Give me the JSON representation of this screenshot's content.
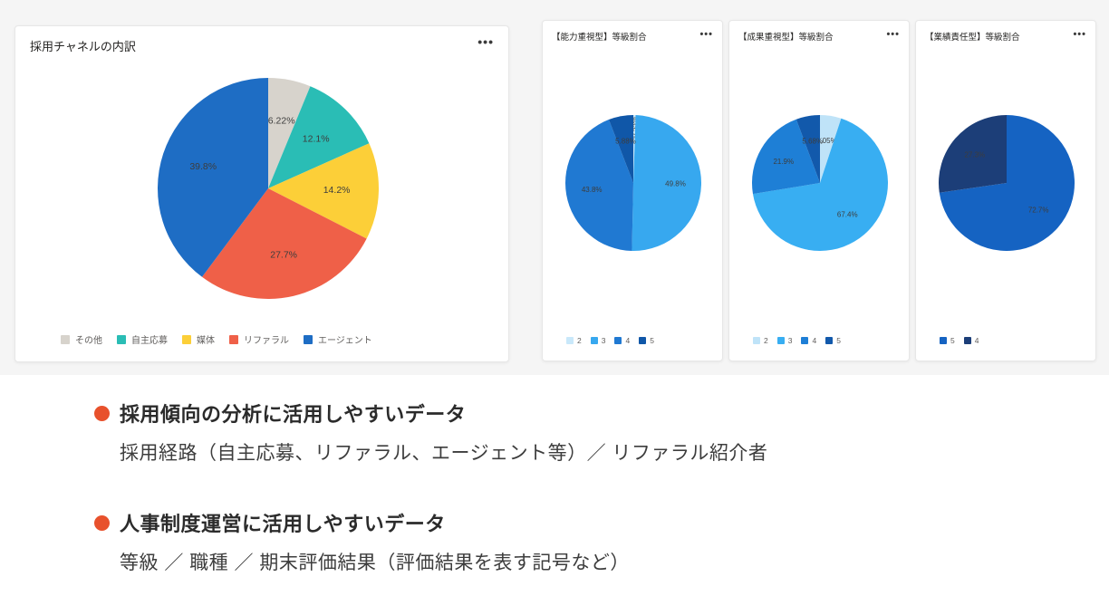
{
  "icons": {
    "more_options": "•••"
  },
  "colors": {
    "bullet_marker": "#e8512c",
    "dashboard_background": "#f5f5f5",
    "card_background": "#ffffff",
    "title_text": "#252423",
    "legend_text": "#605e5c"
  },
  "chart_data": [
    {
      "type": "pie",
      "title": "採用チャネルの内訳",
      "labels": [
        "その他",
        "自主応募",
        "媒体",
        "リファラル",
        "エージェント"
      ],
      "values": [
        6.22,
        12.1,
        14.2,
        27.7,
        39.8
      ],
      "display_labels": [
        "6.22%",
        "12.1%",
        "14.2%",
        "27.7%",
        "39.8%"
      ],
      "colors": [
        "#d7d3cc",
        "#2abdb5",
        "#fccf38",
        "#ef6048",
        "#1e6dc4"
      ],
      "legend_position": "bottom",
      "start_angle_deg": -90,
      "direction": "clockwise"
    },
    {
      "type": "pie",
      "title": "【能力重視型】等級割合",
      "labels": [
        "2",
        "3",
        "4",
        "5"
      ],
      "values": [
        0.55,
        49.8,
        43.8,
        5.88
      ],
      "display_labels": [
        "0.55%",
        "49.8%",
        "43.8%",
        "5.88%"
      ],
      "colors": [
        "#c9e8fa",
        "#37a8ef",
        "#2079d2",
        "#1057a8"
      ],
      "legend_position": "bottom",
      "start_angle_deg": -90,
      "direction": "clockwise"
    },
    {
      "type": "pie",
      "title": "【成果重視型】等級割合",
      "labels": [
        "2",
        "3",
        "4",
        "5"
      ],
      "values": [
        5.05,
        67.4,
        21.9,
        5.68
      ],
      "display_labels": [
        "5.05%",
        "67.4%",
        "21.9%",
        "5.68%"
      ],
      "colors": [
        "#bfe3f8",
        "#38aef2",
        "#1e7fd6",
        "#1259ab"
      ],
      "legend_position": "bottom",
      "start_angle_deg": -90,
      "direction": "clockwise"
    },
    {
      "type": "pie",
      "title": "【業績責任型】等級割合",
      "labels": [
        "5",
        "4"
      ],
      "values": [
        72.7,
        27.3
      ],
      "display_labels": [
        "72.7%",
        "27.3%"
      ],
      "colors": [
        "#1563c2",
        "#1c3e78"
      ],
      "legend_position": "bottom",
      "start_angle_deg": -90,
      "direction": "clockwise"
    }
  ],
  "bullets": [
    {
      "title": "採用傾向の分析に活用しやすいデータ",
      "description": "採用経路（自主応募、リファラル、エージェント等）／ リファラル紹介者"
    },
    {
      "title": "人事制度運営に活用しやすいデータ",
      "description": "等級 ／ 職種 ／ 期末評価結果（評価結果を表す記号など）"
    }
  ]
}
